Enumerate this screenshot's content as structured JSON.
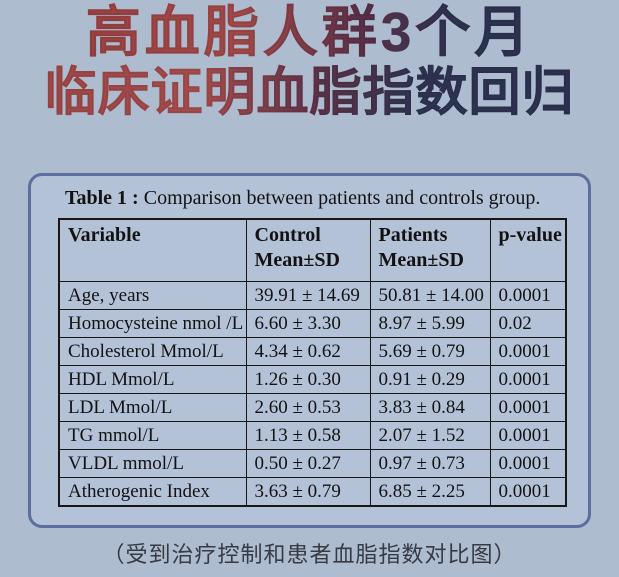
{
  "title": {
    "line1": "高血脂人群3个月",
    "line2": "临床证明血脂指数回归"
  },
  "panel": {
    "caption_bold": "Table 1 :",
    "caption_rest": " Comparison between patients and controls group."
  },
  "table": {
    "headers": [
      {
        "label": "Variable",
        "sub": ""
      },
      {
        "label": "Control",
        "sub": "Mean±SD"
      },
      {
        "label": "Patients",
        "sub": "Mean±SD"
      },
      {
        "label": "p-value",
        "sub": ""
      }
    ],
    "rows": [
      {
        "variable": "Age, years",
        "control": "39.91 ± 14.69",
        "patients": "50.81 ± 14.00",
        "p": "0.0001"
      },
      {
        "variable": "Homocysteine nmol /L",
        "control": "6.60 ± 3.30",
        "patients": "8.97 ± 5.99",
        "p": "0.02"
      },
      {
        "variable": "Cholesterol Mmol/L",
        "control": "4.34 ± 0.62",
        "patients": "5.69 ± 0.79",
        "p": "0.0001"
      },
      {
        "variable": "HDL Mmol/L",
        "control": "1.26 ± 0.30",
        "patients": "0.91 ± 0.29",
        "p": "0.0001"
      },
      {
        "variable": "LDL Mmol/L",
        "control": "2.60 ± 0.53",
        "patients": "3.83 ± 0.84",
        "p": "0.0001"
      },
      {
        "variable": "TG mmol/L",
        "control": "1.13 ± 0.58",
        "patients": "2.07 ± 1.52",
        "p": "0.0001"
      },
      {
        "variable": "VLDL mmol/L",
        "control": "0.50 ± 0.27",
        "patients": "0.97 ± 0.73",
        "p": "0.0001"
      },
      {
        "variable": "Atherogenic Index",
        "control": "3.63 ± 0.79",
        "patients": "6.85 ± 2.25",
        "p": "0.0001"
      }
    ]
  },
  "footer": {
    "caption": "（受到治疗控制和患者血脂指数对比图）"
  },
  "colors": {
    "background": "#aebccf",
    "panel_background": "#b4c2d8",
    "panel_border": "#5c6e9e",
    "title_red": "#a04747",
    "title_navy": "#2e3452",
    "table_border": "#171717",
    "footer_text": "#363a44"
  }
}
